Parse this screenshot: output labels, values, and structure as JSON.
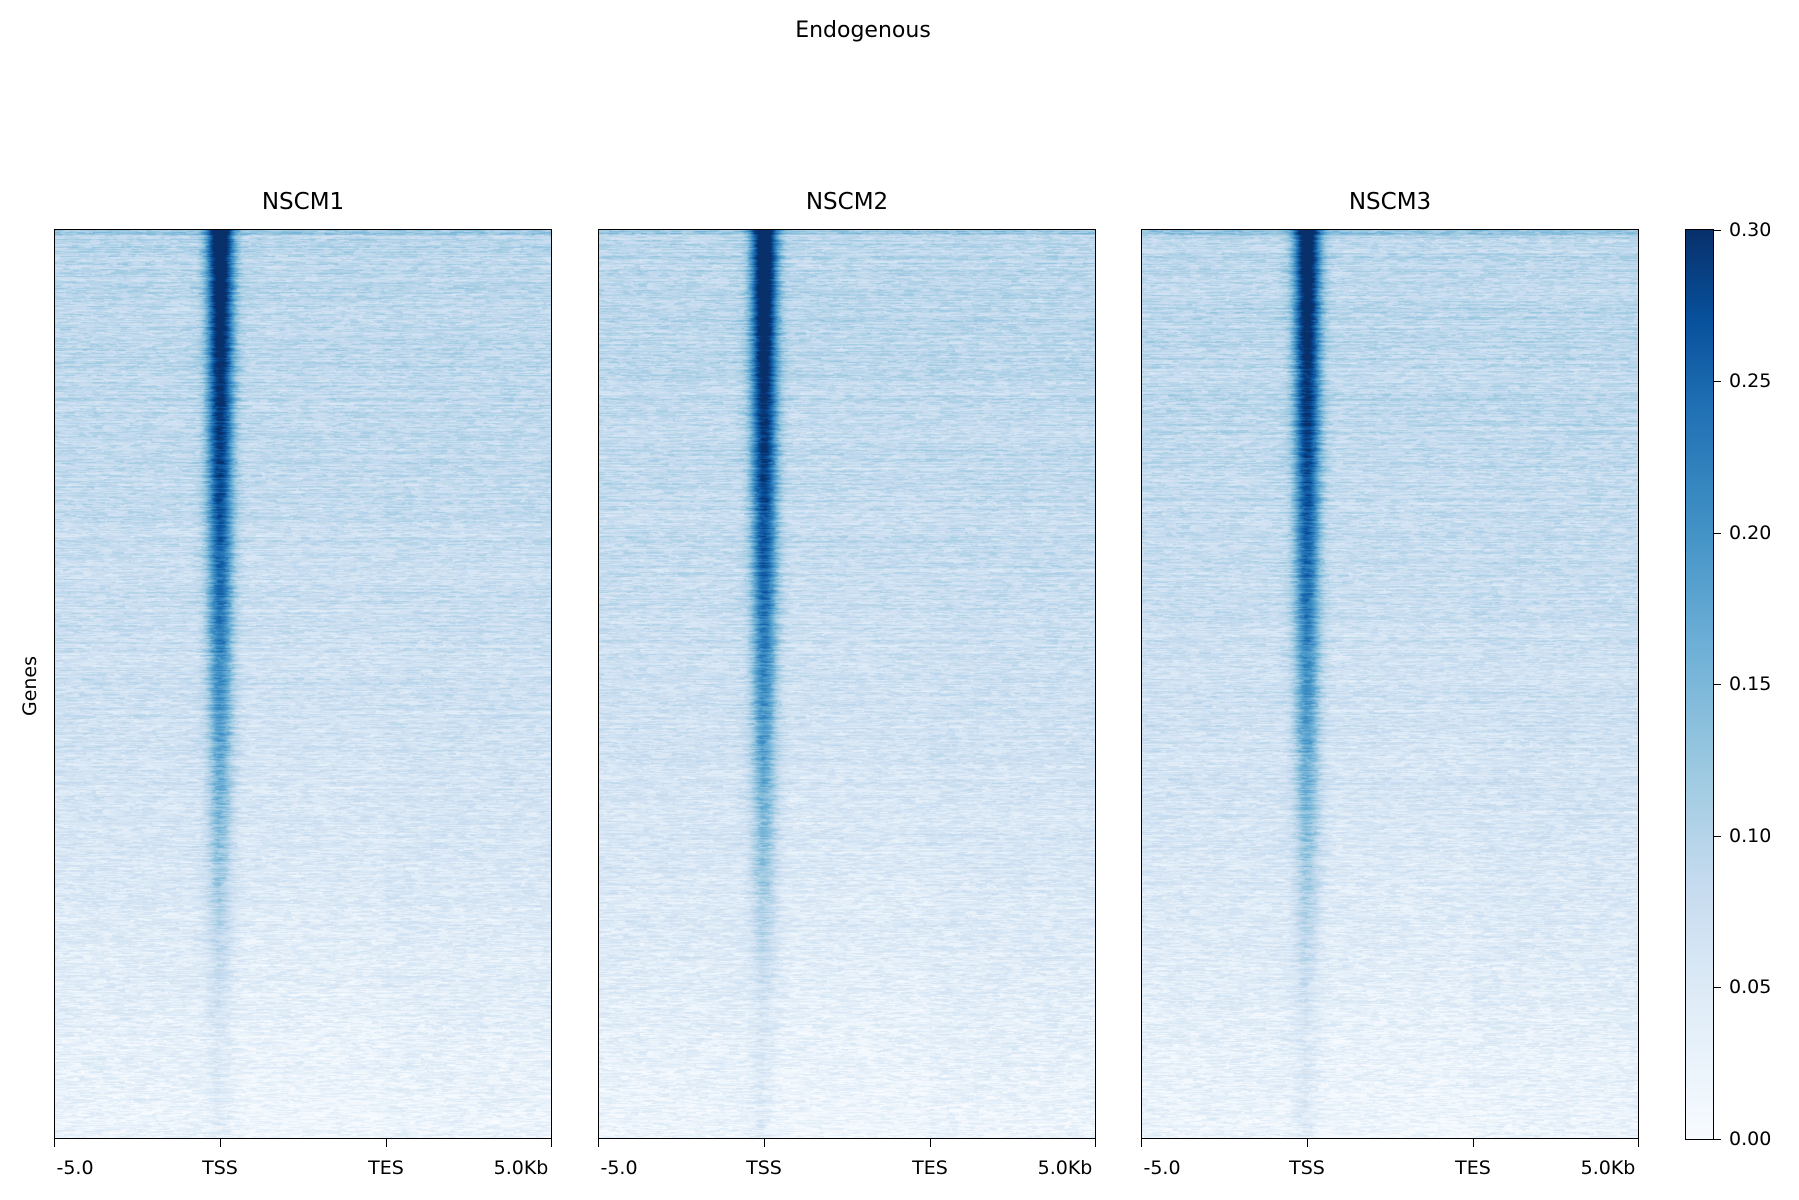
{
  "figure": {
    "title": "Endogenous",
    "ylabel": "Genes"
  },
  "chart_data": {
    "type": "heatmap",
    "title": "Endogenous",
    "ylabel": "Genes",
    "panels": [
      {
        "name": "NSCM1",
        "xticks": [
          "-5.0",
          "TSS",
          "TES",
          "5.0Kb"
        ]
      },
      {
        "name": "NSCM2",
        "xticks": [
          "-5.0",
          "TSS",
          "TES",
          "5.0Kb"
        ]
      },
      {
        "name": "NSCM3",
        "xticks": [
          "-5.0",
          "TSS",
          "TES",
          "5.0Kb"
        ]
      }
    ],
    "colorbar": {
      "range": [
        0.0,
        0.3
      ],
      "ticks": [
        "0.00",
        "0.05",
        "0.10",
        "0.15",
        "0.20",
        "0.25",
        "0.30"
      ],
      "colormap": "Blues",
      "colors": [
        "#f7fbff",
        "#deebf7",
        "#c6dbef",
        "#9ecae1",
        "#6baed6",
        "#4292c6",
        "#2171b5",
        "#08519c",
        "#08306b"
      ]
    },
    "profile": {
      "regions": [
        "upstream",
        "TSS",
        "gene body",
        "downstream"
      ],
      "approx_tss_peak": 0.28,
      "approx_background": 0.07
    }
  }
}
